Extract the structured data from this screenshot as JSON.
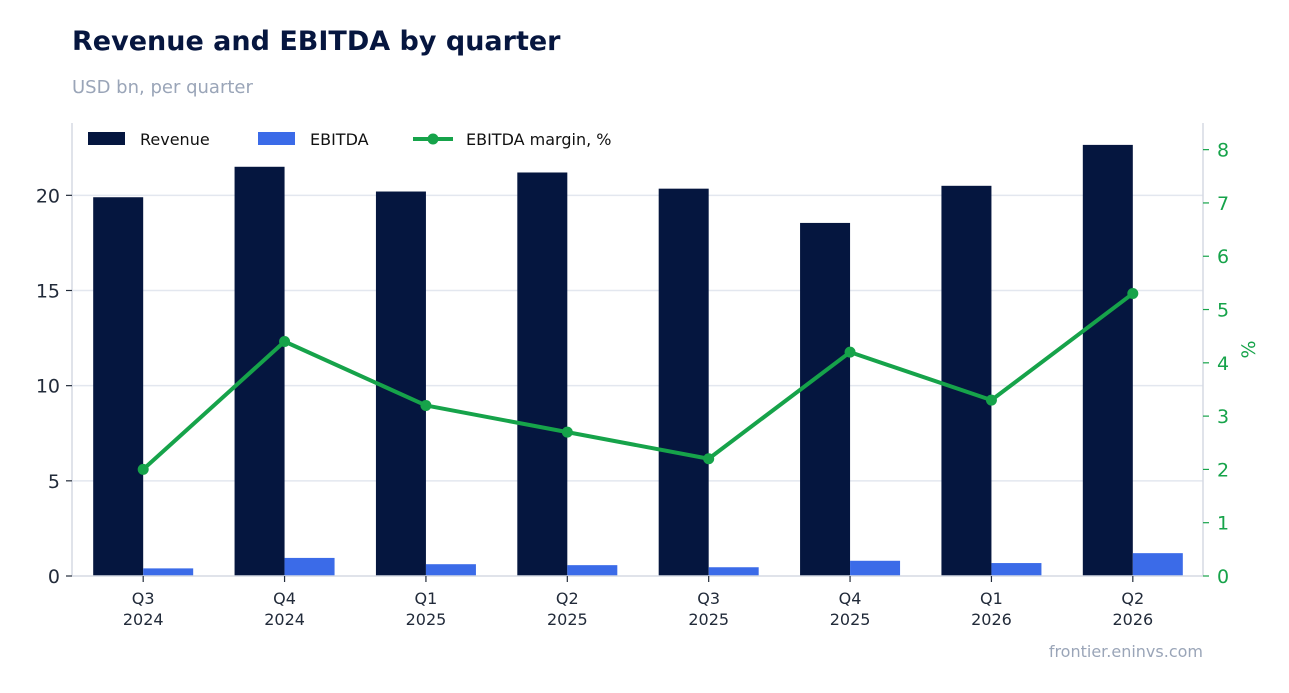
{
  "header": {
    "title": "Revenue and EBITDA by quarter",
    "subtitle": "USD bn, per quarter"
  },
  "footer": {
    "source": "frontier.eninvs.com"
  },
  "colors": {
    "revenue": "#05163f",
    "ebitda": "#3b6be8",
    "margin": "#16a34a",
    "grid": "#e3e7ef",
    "axis": "#d5dae3"
  },
  "chart_data": {
    "type": "bar",
    "title": "Revenue and EBITDA by quarter",
    "subtitle": "USD bn, per quarter",
    "categories": [
      [
        "Q3",
        "2024"
      ],
      [
        "Q4",
        "2024"
      ],
      [
        "Q1",
        "2025"
      ],
      [
        "Q2",
        "2025"
      ],
      [
        "Q3",
        "2025"
      ],
      [
        "Q4",
        "2025"
      ],
      [
        "Q1",
        "2026"
      ],
      [
        "Q2",
        "2026"
      ]
    ],
    "series": [
      {
        "name": "Revenue",
        "type": "bar",
        "axis": "left",
        "values": [
          19.9,
          21.5,
          20.2,
          21.2,
          20.35,
          18.55,
          20.5,
          22.65
        ]
      },
      {
        "name": "EBITDA",
        "type": "bar",
        "axis": "left",
        "values": [
          0.4,
          0.95,
          0.62,
          0.57,
          0.46,
          0.8,
          0.68,
          1.2
        ]
      },
      {
        "name": "EBITDA margin, %",
        "type": "line",
        "axis": "right",
        "values": [
          2.0,
          4.4,
          3.2,
          2.7,
          2.2,
          4.2,
          3.3,
          5.3
        ]
      }
    ],
    "y_left": {
      "label": "",
      "ylim": [
        0,
        23.8
      ],
      "ticks": [
        0,
        5,
        10,
        15,
        20
      ]
    },
    "y_right": {
      "label": "%",
      "ylim": [
        0,
        8.5
      ],
      "ticks": [
        0,
        1,
        2,
        3,
        4,
        5,
        6,
        7,
        8
      ]
    },
    "xlabel": "",
    "grid": true,
    "legend": "top-left"
  }
}
